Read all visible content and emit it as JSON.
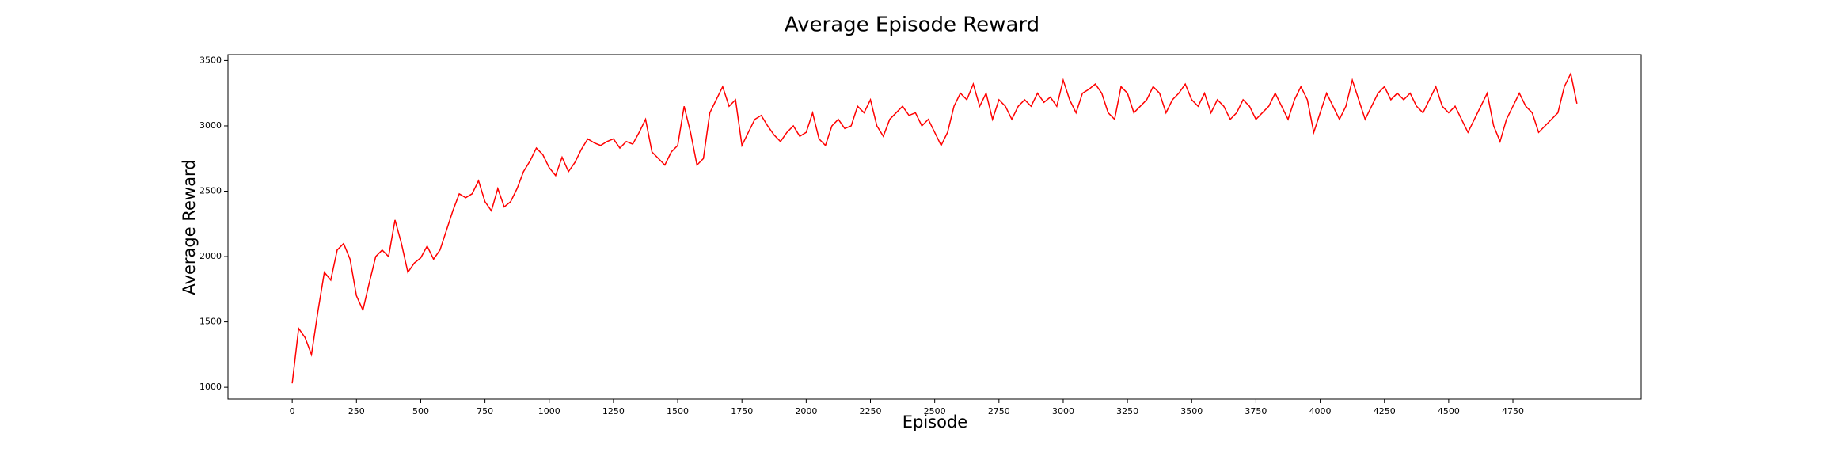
{
  "chart_data": {
    "type": "line",
    "title": "Average Episode Reward",
    "xlabel": "Episode",
    "ylabel": "Average Reward",
    "x": [
      0,
      25,
      50,
      75,
      100,
      125,
      150,
      175,
      200,
      225,
      250,
      275,
      300,
      325,
      350,
      375,
      400,
      425,
      450,
      475,
      500,
      525,
      550,
      575,
      600,
      625,
      650,
      675,
      700,
      725,
      750,
      775,
      800,
      825,
      850,
      875,
      900,
      925,
      950,
      975,
      1000,
      1025,
      1050,
      1075,
      1100,
      1125,
      1150,
      1175,
      1200,
      1225,
      1250,
      1275,
      1300,
      1325,
      1350,
      1375,
      1400,
      1425,
      1450,
      1475,
      1500,
      1525,
      1550,
      1575,
      1600,
      1625,
      1650,
      1675,
      1700,
      1725,
      1750,
      1775,
      1800,
      1825,
      1850,
      1875,
      1900,
      1925,
      1950,
      1975,
      2000,
      2025,
      2050,
      2075,
      2100,
      2125,
      2150,
      2175,
      2200,
      2225,
      2250,
      2275,
      2300,
      2325,
      2350,
      2375,
      2400,
      2425,
      2450,
      2475,
      2500,
      2525,
      2550,
      2575,
      2600,
      2625,
      2650,
      2675,
      2700,
      2725,
      2750,
      2775,
      2800,
      2825,
      2850,
      2875,
      2900,
      2925,
      2950,
      2975,
      3000,
      3025,
      3050,
      3075,
      3100,
      3125,
      3150,
      3175,
      3200,
      3225,
      3250,
      3275,
      3300,
      3325,
      3350,
      3375,
      3400,
      3425,
      3450,
      3475,
      3500,
      3525,
      3550,
      3575,
      3600,
      3625,
      3650,
      3675,
      3700,
      3725,
      3750,
      3775,
      3800,
      3825,
      3850,
      3875,
      3900,
      3925,
      3950,
      3975,
      4000,
      4025,
      4050,
      4075,
      4100,
      4125,
      4150,
      4175,
      4200,
      4225,
      4250,
      4275,
      4300,
      4325,
      4350,
      4375,
      4400,
      4425,
      4450,
      4475,
      4500,
      4525,
      4550,
      4575,
      4600,
      4625,
      4650,
      4675,
      4700,
      4725,
      4750,
      4775,
      4800,
      4825,
      4850,
      4875,
      4900,
      4925,
      4950,
      4975,
      4999
    ],
    "series": [
      {
        "name": "Average Reward",
        "color": "#ff0000",
        "values": [
          1030,
          1450,
          1380,
          1250,
          1580,
          1880,
          1820,
          2050,
          2100,
          1980,
          1700,
          1590,
          1800,
          2000,
          2050,
          2000,
          2280,
          2100,
          1880,
          1950,
          1990,
          2080,
          1980,
          2050,
          2200,
          2350,
          2480,
          2450,
          2480,
          2580,
          2420,
          2350,
          2520,
          2380,
          2420,
          2520,
          2650,
          2730,
          2830,
          2780,
          2680,
          2620,
          2760,
          2650,
          2720,
          2820,
          2900,
          2870,
          2850,
          2880,
          2900,
          2830,
          2880,
          2860,
          2950,
          3050,
          2800,
          2750,
          2700,
          2800,
          2850,
          3150,
          2950,
          2700,
          2750,
          3100,
          3200,
          3300,
          3150,
          3200,
          2850,
          2950,
          3050,
          3080,
          3000,
          2930,
          2880,
          2950,
          3000,
          2920,
          2950,
          3100,
          2900,
          2850,
          3000,
          3050,
          2980,
          3000,
          3150,
          3100,
          3200,
          3000,
          2920,
          3050,
          3100,
          3150,
          3080,
          3100,
          3000,
          3050,
          2950,
          2850,
          2950,
          3150,
          3250,
          3200,
          3320,
          3150,
          3250,
          3050,
          3200,
          3150,
          3050,
          3150,
          3200,
          3150,
          3250,
          3180,
          3220,
          3150,
          3350,
          3200,
          3100,
          3250,
          3280,
          3320,
          3250,
          3100,
          3050,
          3300,
          3250,
          3100,
          3150,
          3200,
          3300,
          3250,
          3100,
          3200,
          3250,
          3320,
          3200,
          3150,
          3250,
          3100,
          3200,
          3150,
          3050,
          3100,
          3200,
          3150,
          3050,
          3100,
          3150,
          3250,
          3150,
          3050,
          3200,
          3300,
          3200,
          2950,
          3100,
          3250,
          3150,
          3050,
          3150,
          3350,
          3200,
          3050,
          3150,
          3250,
          3300,
          3200,
          3250,
          3200,
          3250,
          3150,
          3100,
          3200,
          3300,
          3150,
          3100,
          3150,
          3050,
          2950,
          3050,
          3150,
          3250,
          3000,
          2880,
          3050,
          3150,
          3250,
          3150,
          3100,
          2950,
          3000,
          3050,
          3100,
          3300,
          3400,
          3170
        ]
      }
    ],
    "xlim": [
      -250,
      5249
    ],
    "ylim": [
      910,
      3545
    ],
    "xticks": [
      0,
      250,
      500,
      750,
      1000,
      1250,
      1500,
      1750,
      2000,
      2250,
      2500,
      2750,
      3000,
      3250,
      3500,
      3750,
      4000,
      4250,
      4500,
      4750
    ],
    "yticks": [
      1000,
      1500,
      2000,
      2500,
      3000,
      3500
    ],
    "grid": false
  }
}
